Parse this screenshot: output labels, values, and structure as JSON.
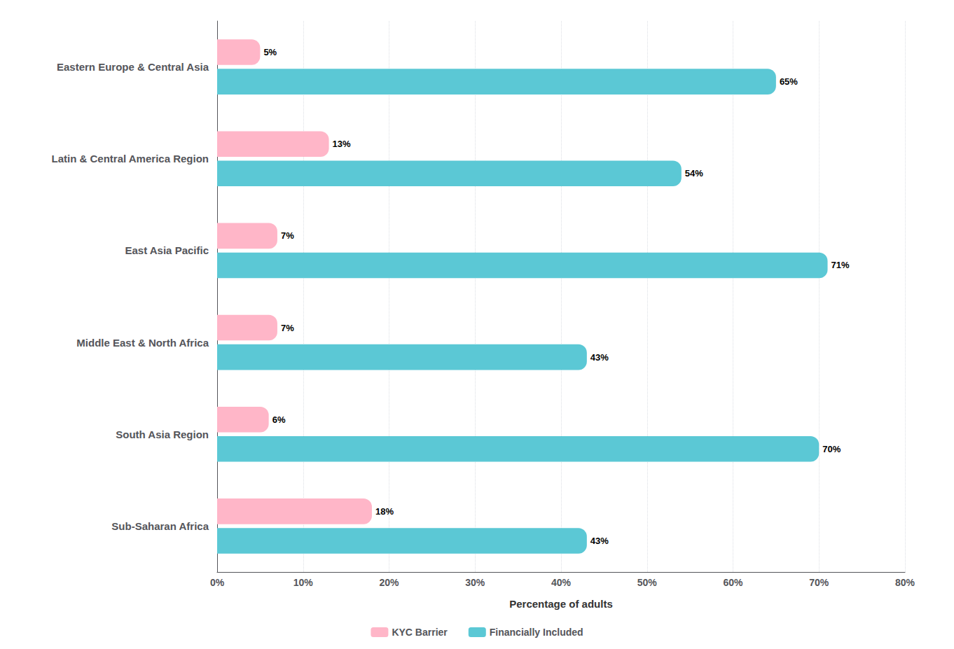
{
  "chart_data": {
    "type": "bar",
    "orientation": "horizontal",
    "xlabel": "Percentage of adults",
    "categories": [
      "Sub-Saharan Africa",
      "South Asia Region",
      "Middle East & North Africa",
      "East Asia Pacific",
      "Latin & Central America Region",
      "Eastern Europe & Central Asia"
    ],
    "series": [
      {
        "name": "KYC Barrier",
        "color": "#FFB6C8",
        "values": [
          18,
          6,
          7,
          7,
          13,
          5
        ],
        "value_labels": [
          "18%",
          "6%",
          "7%",
          "7%",
          "13%",
          "5%"
        ]
      },
      {
        "name": "Financially Included",
        "color": "#5BC8D5",
        "values": [
          43,
          70,
          43,
          71,
          54,
          65
        ],
        "value_labels": [
          "43%",
          "70%",
          "43%",
          "71%",
          "54%",
          "65%"
        ]
      }
    ],
    "xlim": [
      0,
      80
    ],
    "xticks": [
      {
        "value": 0,
        "label": "0%"
      },
      {
        "value": 10,
        "label": "10%"
      },
      {
        "value": 20,
        "label": "20%"
      },
      {
        "value": 30,
        "label": "30%"
      },
      {
        "value": 40,
        "label": "40%"
      },
      {
        "value": 50,
        "label": "50%"
      },
      {
        "value": 60,
        "label": "60%"
      },
      {
        "value": 70,
        "label": "70%"
      },
      {
        "value": 80,
        "label": "80%"
      }
    ],
    "grid": true,
    "legend": "bottom",
    "data_labels": true
  }
}
